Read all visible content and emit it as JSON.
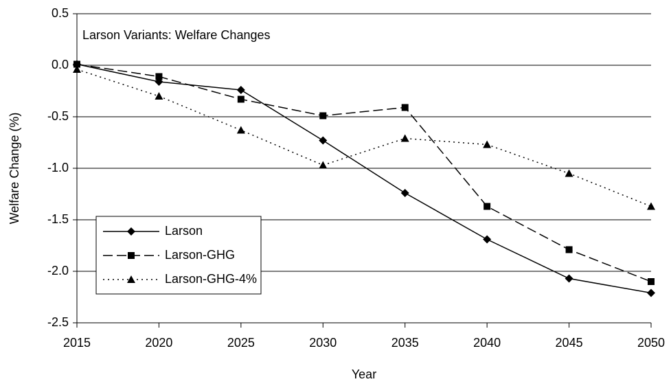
{
  "chart_data": {
    "type": "line",
    "title": "Larson Variants: Welfare Changes",
    "x_label": "Year",
    "y_label": "Welfare Change (%)",
    "x": [
      2015,
      2020,
      2025,
      2030,
      2035,
      2040,
      2045,
      2050
    ],
    "xlim": [
      2015,
      2050
    ],
    "xticks": [
      2015,
      2020,
      2025,
      2030,
      2035,
      2040,
      2045,
      2050
    ],
    "ylim": [
      -2.5,
      0.5
    ],
    "yticks": [
      0.5,
      {
        "value": 0,
        "label": "0.0"
      },
      -0.5,
      {
        "value": -1,
        "label": "-1.0"
      },
      -1.5,
      {
        "value": -2,
        "label": "-2.0"
      },
      -2.5
    ],
    "grid": true,
    "series": [
      {
        "name": "Larson",
        "color": "#000000",
        "line_style": "solid",
        "marker": "diamond",
        "values": [
          0.01,
          -0.16,
          -0.24,
          -0.73,
          -1.24,
          -1.69,
          -2.07,
          -2.21
        ]
      },
      {
        "name": "Larson-GHG",
        "color": "#000000",
        "line_style": "dashed",
        "marker": "square",
        "values": [
          0.01,
          -0.11,
          -0.33,
          -0.49,
          -0.41,
          -1.37,
          -1.79,
          -2.1
        ]
      },
      {
        "name": "Larson-GHG-4%",
        "color": "#000000",
        "line_style": "dotted",
        "marker": "triangle",
        "values": [
          -0.04,
          -0.3,
          -0.63,
          -0.97,
          -0.71,
          -0.77,
          -1.05,
          -1.37
        ]
      }
    ]
  }
}
